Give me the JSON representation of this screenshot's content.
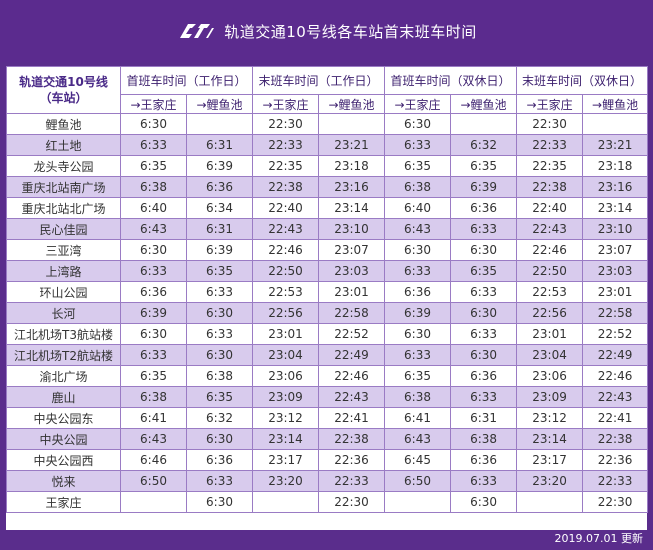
{
  "header": {
    "logo_text": "CRT",
    "title": "轨道交通10号线各车站首末班车时间"
  },
  "table": {
    "station_header_line1": "轨道交通10号线",
    "station_header_line2": "（车站）",
    "groups": [
      "首班车时间（工作日）",
      "末班车时间（工作日）",
      "首班车时间（双休日）",
      "末班车时间（双休日）"
    ],
    "directions": [
      "→王家庄",
      "→鲤鱼池",
      "→王家庄",
      "→鲤鱼池",
      "→王家庄",
      "→鲤鱼池",
      "→王家庄",
      "→鲤鱼池"
    ],
    "rows": [
      [
        "鲤鱼池",
        "6:30",
        "",
        "22:30",
        "",
        "6:30",
        "",
        "22:30",
        ""
      ],
      [
        "红土地",
        "6:33",
        "6:31",
        "22:33",
        "23:21",
        "6:33",
        "6:32",
        "22:33",
        "23:21"
      ],
      [
        "龙头寺公园",
        "6:35",
        "6:39",
        "22:35",
        "23:18",
        "6:35",
        "6:35",
        "22:35",
        "23:18"
      ],
      [
        "重庆北站南广场",
        "6:38",
        "6:36",
        "22:38",
        "23:16",
        "6:38",
        "6:39",
        "22:38",
        "23:16"
      ],
      [
        "重庆北站北广场",
        "6:40",
        "6:34",
        "22:40",
        "23:14",
        "6:40",
        "6:36",
        "22:40",
        "23:14"
      ],
      [
        "民心佳园",
        "6:43",
        "6:31",
        "22:43",
        "23:10",
        "6:43",
        "6:33",
        "22:43",
        "23:10"
      ],
      [
        "三亚湾",
        "6:30",
        "6:39",
        "22:46",
        "23:07",
        "6:30",
        "6:30",
        "22:46",
        "23:07"
      ],
      [
        "上湾路",
        "6:33",
        "6:35",
        "22:50",
        "23:03",
        "6:33",
        "6:35",
        "22:50",
        "23:03"
      ],
      [
        "环山公园",
        "6:36",
        "6:33",
        "22:53",
        "23:01",
        "6:36",
        "6:33",
        "22:53",
        "23:01"
      ],
      [
        "长河",
        "6:39",
        "6:30",
        "22:56",
        "22:58",
        "6:39",
        "6:30",
        "22:56",
        "22:58"
      ],
      [
        "江北机场T3航站楼",
        "6:30",
        "6:33",
        "23:01",
        "22:52",
        "6:30",
        "6:33",
        "23:01",
        "22:52"
      ],
      [
        "江北机场T2航站楼",
        "6:33",
        "6:30",
        "23:04",
        "22:49",
        "6:33",
        "6:30",
        "23:04",
        "22:49"
      ],
      [
        "渝北广场",
        "6:35",
        "6:38",
        "23:06",
        "22:46",
        "6:35",
        "6:36",
        "23:06",
        "22:46"
      ],
      [
        "鹿山",
        "6:38",
        "6:35",
        "23:09",
        "22:43",
        "6:38",
        "6:33",
        "23:09",
        "22:43"
      ],
      [
        "中央公园东",
        "6:41",
        "6:32",
        "23:12",
        "22:41",
        "6:41",
        "6:31",
        "23:12",
        "22:41"
      ],
      [
        "中央公园",
        "6:43",
        "6:30",
        "23:14",
        "22:38",
        "6:43",
        "6:38",
        "23:14",
        "22:38"
      ],
      [
        "中央公园西",
        "6:46",
        "6:36",
        "23:17",
        "22:36",
        "6:45",
        "6:36",
        "23:17",
        "22:36"
      ],
      [
        "悦来",
        "6:50",
        "6:33",
        "23:20",
        "22:33",
        "6:50",
        "6:33",
        "23:20",
        "22:33"
      ],
      [
        "王家庄",
        "",
        "6:30",
        "",
        "22:30",
        "",
        "6:30",
        "",
        "22:30"
      ]
    ]
  },
  "footer": {
    "updated": "2019.07.01 更新"
  },
  "colors": {
    "background": "#5a2d8c",
    "alt_row": "#d8cbed",
    "border": "#9a7bc4",
    "header_text": "#4a2a88"
  }
}
